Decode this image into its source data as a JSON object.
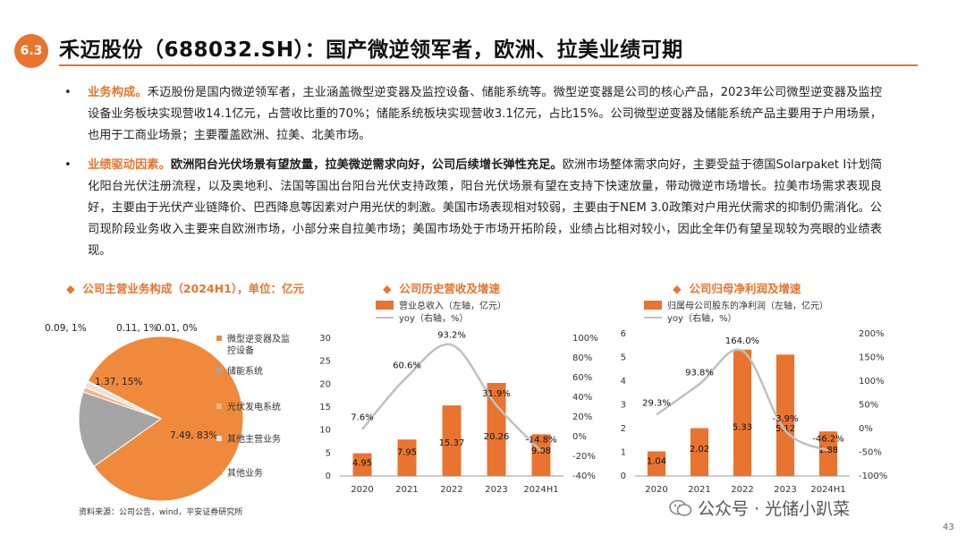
{
  "header": {
    "section": "6.3",
    "title": "禾迈股份（688032.SH）：国产微逆领军者，欧洲、拉美业绩可期"
  },
  "bullets": [
    {
      "head": "业务构成。",
      "text": "禾迈股份是国内微逆领军者，主业涵盖微型逆变器及监控设备、储能系统等。微型逆变器是公司的核心产品，2023年公司微型逆变器及监控设备业务板块实现营收14.1亿元，占营收比重的70%；储能系统板块实现营收3.1亿元，占比15%。公司微型逆变器及储能系统产品主要用于户用场景，也用于工商业场景；主要覆盖欧洲、拉美、北美市场。"
    },
    {
      "head": "业绩驱动因素。",
      "bold": "欧洲阳台光伏场景有望放量，拉美微逆需求向好，公司后续增长弹性充足。",
      "text": "欧洲市场整体需求向好，主要受益于德国Solarpaket I计划简化阳台光伏注册流程，以及奥地利、法国等国出台阳台光伏支持政策，阳台光伏场景有望在支持下快速放量，带动微逆市场增长。拉美市场需求表现良好，主要由于光伏产业链降价、巴西降息等因素对户用光伏的刺激。美国市场表现相对较弱，主要由于NEM 3.0政策对户用光伏需求的抑制仍需消化。公司现阶段业务收入主要来自欧洲市场，小部分来自拉美市场；美国市场处于市场开拓阶段，业绩占比相对较小，因此全年仍有望呈现较为亮眼的业绩表现。"
    }
  ],
  "chart_data": [
    {
      "type": "pie",
      "title": "公司主营业务构成（2024H1），单位：亿元",
      "slices": [
        {
          "name": "微型逆变器及监控设备",
          "value": 7.49,
          "label": "7.49, 83%",
          "color": "#ef8a3d"
        },
        {
          "name": "储能系统",
          "value": 1.37,
          "label": "1.37, 15%",
          "color": "#a5a5a5"
        },
        {
          "name": "光伏发电系统",
          "value": 0.09,
          "label": "0.09, 1%",
          "color": "#f7b48a"
        },
        {
          "name": "其他主营业务",
          "value": 0.11,
          "label": "0.11, 1%",
          "color": "#e3e3e3"
        },
        {
          "name": "其他业务",
          "value": 0.01,
          "label": "0.01, 0%",
          "color": "#ef8a3d"
        }
      ]
    },
    {
      "type": "bar",
      "title": "公司历史营收及增速",
      "categories": [
        "2020",
        "2021",
        "2022",
        "2023",
        "2024H1"
      ],
      "series": [
        {
          "name": "营业总收入（左轴，亿元）",
          "values": [
            4.95,
            7.95,
            15.37,
            20.26,
            9.08
          ],
          "color": "#e8742f"
        },
        {
          "name": "yoy（右轴，%）",
          "values": [
            7.6,
            60.6,
            93.2,
            31.9,
            -14.8
          ],
          "labels": [
            "7.6%",
            "60.6%",
            "93.2%",
            "31.9%",
            "-14.8%"
          ],
          "color": "#c0c0c0"
        }
      ],
      "ylim": [
        0,
        30
      ],
      "yticks": [
        0,
        5,
        10,
        15,
        20,
        25,
        30
      ],
      "y2lim": [
        -40,
        100
      ],
      "y2ticks": [
        "100%",
        "80%",
        "60%",
        "40%",
        "20%",
        "0%",
        "-20%",
        "-40%"
      ]
    },
    {
      "type": "bar",
      "title": "公司归母净利润及增速",
      "categories": [
        "2020",
        "2021",
        "2022",
        "2023",
        "2024H1"
      ],
      "series": [
        {
          "name": "归属母公司股东的净利润（左轴，亿元）",
          "values": [
            1.04,
            2.02,
            5.33,
            5.12,
            1.88
          ],
          "color": "#e8742f"
        },
        {
          "name": "yoy（右轴，%）",
          "values": [
            29.3,
            93.8,
            164.0,
            -3.9,
            -46.2
          ],
          "labels": [
            "29.3%",
            "93.8%",
            "164.0%",
            "-3.9%",
            "-46.2%"
          ],
          "color": "#c0c0c0"
        }
      ],
      "ylim": [
        0,
        6
      ],
      "yticks": [
        0,
        1,
        2,
        3,
        4,
        5,
        6
      ],
      "y2lim": [
        -100,
        200
      ],
      "y2ticks": [
        "200%",
        "150%",
        "100%",
        "50%",
        "0%",
        "-50%",
        "-100%"
      ]
    }
  ],
  "footer": {
    "source": "资料来源：公司公告，wind，平安证券研究所",
    "watermark": "公众号 · 光储小趴菜",
    "page": "43"
  }
}
